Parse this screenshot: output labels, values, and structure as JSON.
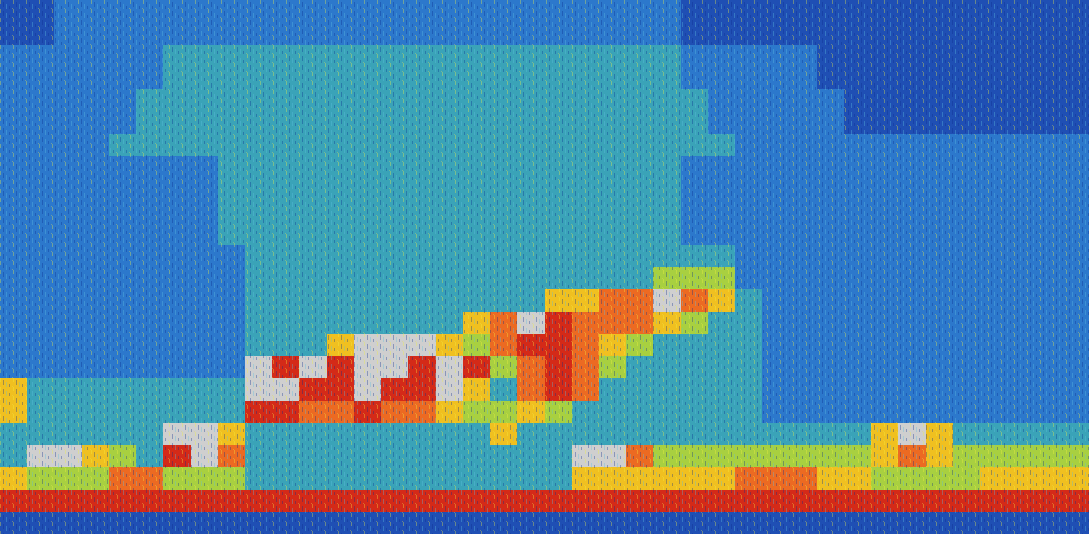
{
  "chart_data": {
    "type": "heatmap",
    "tick_labels": false,
    "grid": false,
    "cells": [
      [
        1,
        1,
        2,
        2,
        2,
        2,
        2,
        2,
        2,
        2,
        2,
        2,
        2,
        2,
        2,
        2,
        2,
        2,
        2,
        2,
        2,
        2,
        2,
        2,
        2,
        1,
        1,
        1,
        1,
        1,
        1,
        1,
        1,
        1,
        1,
        1,
        1,
        1,
        1,
        1
      ],
      [
        1,
        1,
        2,
        2,
        2,
        2,
        2,
        2,
        2,
        2,
        2,
        2,
        2,
        2,
        2,
        2,
        2,
        2,
        2,
        2,
        2,
        2,
        2,
        2,
        2,
        1,
        1,
        1,
        1,
        1,
        1,
        1,
        1,
        1,
        1,
        1,
        1,
        1,
        1,
        1
      ],
      [
        2,
        2,
        2,
        2,
        2,
        2,
        3,
        3,
        3,
        3,
        3,
        3,
        3,
        3,
        3,
        3,
        3,
        3,
        3,
        3,
        3,
        3,
        3,
        3,
        3,
        2,
        2,
        2,
        2,
        2,
        1,
        1,
        1,
        1,
        1,
        1,
        1,
        1,
        1,
        1
      ],
      [
        2,
        2,
        2,
        2,
        2,
        2,
        3,
        3,
        3,
        3,
        3,
        3,
        3,
        3,
        3,
        3,
        3,
        3,
        3,
        3,
        3,
        3,
        3,
        3,
        3,
        2,
        2,
        2,
        2,
        2,
        1,
        1,
        1,
        1,
        1,
        1,
        1,
        1,
        1,
        1
      ],
      [
        2,
        2,
        2,
        2,
        2,
        3,
        3,
        3,
        3,
        3,
        3,
        3,
        3,
        3,
        3,
        3,
        3,
        3,
        3,
        3,
        3,
        3,
        3,
        3,
        3,
        3,
        2,
        2,
        2,
        2,
        2,
        1,
        1,
        1,
        1,
        1,
        1,
        1,
        1,
        1
      ],
      [
        2,
        2,
        2,
        2,
        2,
        3,
        3,
        3,
        3,
        3,
        3,
        3,
        3,
        3,
        3,
        3,
        3,
        3,
        3,
        3,
        3,
        3,
        3,
        3,
        3,
        3,
        2,
        2,
        2,
        2,
        2,
        1,
        1,
        1,
        1,
        1,
        1,
        1,
        1,
        1
      ],
      [
        2,
        2,
        2,
        2,
        3,
        3,
        3,
        3,
        3,
        3,
        3,
        3,
        3,
        3,
        3,
        3,
        3,
        3,
        3,
        3,
        3,
        3,
        3,
        3,
        3,
        3,
        3,
        2,
        2,
        2,
        2,
        2,
        2,
        2,
        2,
        2,
        2,
        2,
        2,
        2
      ],
      [
        2,
        2,
        2,
        2,
        2,
        2,
        2,
        2,
        3,
        3,
        3,
        3,
        3,
        3,
        3,
        3,
        3,
        3,
        3,
        3,
        3,
        3,
        3,
        3,
        3,
        2,
        2,
        2,
        2,
        2,
        2,
        2,
        2,
        2,
        2,
        2,
        2,
        2,
        2,
        2
      ],
      [
        2,
        2,
        2,
        2,
        2,
        2,
        2,
        2,
        3,
        3,
        3,
        3,
        3,
        3,
        3,
        3,
        3,
        3,
        3,
        3,
        3,
        3,
        3,
        3,
        3,
        2,
        2,
        2,
        2,
        2,
        2,
        2,
        2,
        2,
        2,
        2,
        2,
        2,
        2,
        2
      ],
      [
        2,
        2,
        2,
        2,
        2,
        2,
        2,
        2,
        3,
        3,
        3,
        3,
        3,
        3,
        3,
        3,
        3,
        3,
        3,
        3,
        3,
        3,
        3,
        3,
        3,
        2,
        2,
        2,
        2,
        2,
        2,
        2,
        2,
        2,
        2,
        2,
        2,
        2,
        2,
        2
      ],
      [
        2,
        2,
        2,
        2,
        2,
        2,
        2,
        2,
        3,
        3,
        3,
        3,
        3,
        3,
        3,
        3,
        3,
        3,
        3,
        3,
        3,
        3,
        3,
        3,
        3,
        2,
        2,
        2,
        2,
        2,
        2,
        2,
        2,
        2,
        2,
        2,
        2,
        2,
        2,
        2
      ],
      [
        2,
        2,
        2,
        2,
        2,
        2,
        2,
        2,
        2,
        3,
        3,
        3,
        3,
        3,
        3,
        3,
        3,
        3,
        3,
        3,
        3,
        3,
        3,
        3,
        3,
        3,
        3,
        2,
        2,
        2,
        2,
        2,
        2,
        2,
        2,
        2,
        2,
        2,
        2,
        2
      ],
      [
        2,
        2,
        2,
        2,
        2,
        2,
        2,
        2,
        2,
        3,
        3,
        3,
        3,
        3,
        3,
        3,
        3,
        3,
        3,
        3,
        3,
        3,
        3,
        3,
        4,
        4,
        4,
        2,
        2,
        2,
        2,
        2,
        2,
        2,
        2,
        2,
        2,
        2,
        2,
        2
      ],
      [
        2,
        2,
        2,
        2,
        2,
        2,
        2,
        2,
        2,
        3,
        3,
        3,
        3,
        3,
        3,
        3,
        3,
        3,
        3,
        3,
        5,
        5,
        6,
        6,
        8,
        6,
        5,
        3,
        2,
        2,
        2,
        2,
        2,
        2,
        2,
        2,
        2,
        2,
        2,
        2
      ],
      [
        2,
        2,
        2,
        2,
        2,
        2,
        2,
        2,
        2,
        3,
        3,
        3,
        3,
        3,
        3,
        3,
        3,
        5,
        6,
        8,
        7,
        6,
        6,
        6,
        5,
        4,
        3,
        3,
        2,
        2,
        2,
        2,
        2,
        2,
        2,
        2,
        2,
        2,
        2,
        2
      ],
      [
        2,
        2,
        2,
        2,
        2,
        2,
        2,
        2,
        2,
        3,
        3,
        3,
        5,
        8,
        8,
        8,
        5,
        4,
        6,
        7,
        7,
        6,
        5,
        4,
        3,
        3,
        3,
        3,
        2,
        2,
        2,
        2,
        2,
        2,
        2,
        2,
        2,
        2,
        2,
        2
      ],
      [
        2,
        2,
        2,
        2,
        2,
        2,
        2,
        2,
        2,
        8,
        7,
        8,
        7,
        8,
        8,
        7,
        8,
        7,
        4,
        6,
        7,
        6,
        4,
        3,
        3,
        3,
        3,
        3,
        2,
        2,
        2,
        2,
        2,
        2,
        2,
        2,
        2,
        2,
        2,
        2
      ],
      [
        5,
        3,
        3,
        3,
        3,
        3,
        3,
        3,
        3,
        8,
        8,
        7,
        7,
        8,
        7,
        7,
        8,
        5,
        3,
        6,
        7,
        6,
        3,
        3,
        3,
        3,
        3,
        3,
        2,
        2,
        2,
        2,
        2,
        2,
        2,
        2,
        2,
        2,
        2,
        2
      ],
      [
        5,
        3,
        3,
        3,
        3,
        3,
        3,
        3,
        3,
        7,
        7,
        6,
        6,
        7,
        6,
        6,
        5,
        4,
        4,
        5,
        4,
        3,
        3,
        3,
        3,
        3,
        3,
        3,
        2,
        2,
        2,
        2,
        2,
        2,
        2,
        2,
        2,
        2,
        2,
        2
      ],
      [
        3,
        3,
        3,
        3,
        3,
        3,
        8,
        8,
        5,
        3,
        3,
        3,
        3,
        3,
        3,
        3,
        3,
        3,
        5,
        3,
        3,
        3,
        3,
        3,
        3,
        3,
        3,
        3,
        3,
        3,
        3,
        3,
        5,
        8,
        5,
        3,
        3,
        3,
        3,
        3
      ],
      [
        3,
        8,
        8,
        5,
        4,
        3,
        7,
        8,
        6,
        3,
        3,
        3,
        3,
        3,
        3,
        3,
        3,
        3,
        3,
        3,
        3,
        8,
        8,
        6,
        4,
        4,
        4,
        4,
        4,
        4,
        4,
        4,
        5,
        6,
        5,
        4,
        4,
        4,
        4,
        4
      ],
      [
        5,
        4,
        4,
        4,
        6,
        6,
        4,
        4,
        4,
        3,
        3,
        3,
        3,
        3,
        3,
        3,
        3,
        3,
        3,
        3,
        3,
        5,
        5,
        5,
        5,
        5,
        5,
        6,
        6,
        6,
        5,
        5,
        4,
        4,
        4,
        4,
        5,
        5,
        5,
        5
      ],
      [
        7,
        7,
        7,
        7,
        7,
        7,
        7,
        7,
        7,
        7,
        7,
        7,
        7,
        7,
        7,
        7,
        7,
        7,
        7,
        7,
        7,
        7,
        7,
        7,
        7,
        7,
        7,
        7,
        7,
        7,
        7,
        7,
        7,
        7,
        7,
        7,
        7,
        7,
        7,
        7
      ],
      [
        1,
        1,
        1,
        1,
        1,
        1,
        1,
        1,
        1,
        1,
        1,
        1,
        1,
        1,
        1,
        1,
        1,
        1,
        1,
        1,
        1,
        1,
        1,
        1,
        1,
        1,
        1,
        1,
        1,
        1,
        1,
        1,
        1,
        1,
        1,
        1,
        1,
        1,
        1,
        1
      ]
    ]
  }
}
